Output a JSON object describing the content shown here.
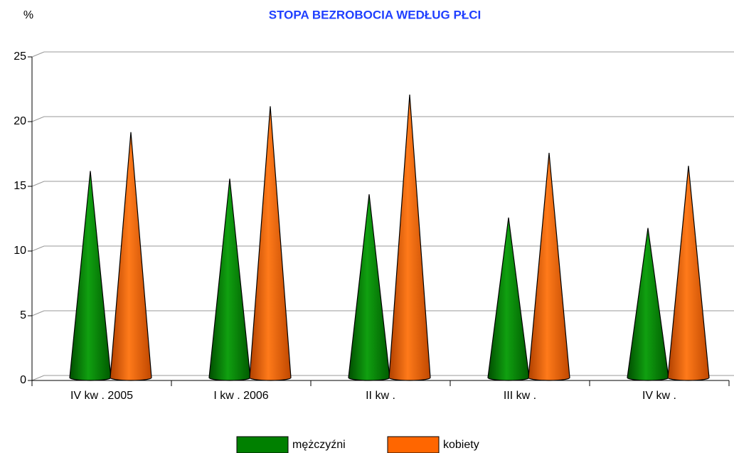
{
  "chart_data": {
    "type": "bar",
    "title": "STOPA BEZROBOCIA WEDŁUG PŁCI",
    "y_label": "%",
    "categories": [
      "IV kw . 2005",
      "I kw . 2006",
      "II kw .",
      "III kw .",
      "IV kw ."
    ],
    "series": [
      {
        "name": "mężczyźni",
        "color": "#008000",
        "values": [
          15.8,
          15.2,
          14.0,
          12.2,
          11.4
        ]
      },
      {
        "name": "kobiety",
        "color": "#ff6600",
        "values": [
          18.8,
          20.8,
          21.7,
          17.2,
          16.2
        ]
      }
    ],
    "ylim": [
      0,
      25
    ],
    "yticks": [
      0,
      5,
      10,
      15,
      20,
      25
    ],
    "grid": true,
    "legend": "bottom"
  }
}
